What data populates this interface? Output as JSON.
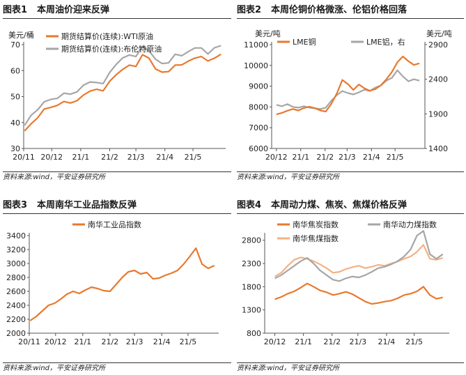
{
  "panels": [
    {
      "label": "图表1",
      "title": "本周油价迎来反弹",
      "source": "资料来源:wind，平安证券研究所"
    },
    {
      "label": "图表2",
      "title": "本周伦铜价格微涨、伦铝价格回落",
      "source": "资料来源:wind，平安证券研究所"
    },
    {
      "label": "图表3",
      "title": "本周南华工业品指数反弹",
      "source": "资料来源:wind，平安证券研究所"
    },
    {
      "label": "图表4",
      "title": "本周动力煤、焦炭、焦煤价格反弹",
      "source": "资料来源:wind，平安证券研究所"
    }
  ],
  "chart_data": [
    {
      "type": "line",
      "title": "本周油价迎来反弹",
      "ylabel": "美元/桶",
      "ylim": [
        30,
        70
      ],
      "yticks": [
        30,
        40,
        50,
        60,
        70
      ],
      "x_tick_labels": [
        "20/11",
        "20/12",
        "21/1",
        "21/2",
        "21/3",
        "21/4",
        "21/5"
      ],
      "legend_position": "top-left",
      "series": [
        {
          "name": "期货结算价(连续):WTI原油",
          "color": "#E8792E",
          "x": [
            "2020-11-02",
            "2020-11-09",
            "2020-11-16",
            "2020-11-23",
            "2020-11-30",
            "2020-12-07",
            "2020-12-14",
            "2020-12-21",
            "2020-12-28",
            "2021-01-04",
            "2021-01-11",
            "2021-01-18",
            "2021-01-25",
            "2021-02-01",
            "2021-02-08",
            "2021-02-15",
            "2021-02-22",
            "2021-03-01",
            "2021-03-08",
            "2021-03-15",
            "2021-03-22",
            "2021-03-29",
            "2021-04-05",
            "2021-04-12",
            "2021-04-19",
            "2021-04-26",
            "2021-05-03",
            "2021-05-10",
            "2021-05-17",
            "2021-05-24",
            "2021-05-31"
          ],
          "y": [
            36.8,
            39.5,
            41.8,
            45.2,
            45.8,
            46.6,
            48.1,
            47.5,
            48.4,
            50.6,
            52.1,
            52.8,
            52.2,
            55.9,
            58.4,
            60.5,
            62.1,
            61.6,
            66.1,
            64.8,
            60.6,
            59.4,
            59.6,
            62.1,
            62.2,
            63.6,
            64.8,
            65.4,
            63.7,
            64.8,
            66.3
          ]
        },
        {
          "name": "期货结算价(连续):布伦特原油",
          "color": "#A6A6A6",
          "x": [
            "2020-11-02",
            "2020-11-09",
            "2020-11-16",
            "2020-11-23",
            "2020-11-30",
            "2020-12-07",
            "2020-12-14",
            "2020-12-21",
            "2020-12-28",
            "2021-01-04",
            "2021-01-11",
            "2021-01-18",
            "2021-01-25",
            "2021-02-01",
            "2021-02-08",
            "2021-02-15",
            "2021-02-22",
            "2021-03-01",
            "2021-03-08",
            "2021-03-15",
            "2021-03-22",
            "2021-03-29",
            "2021-04-05",
            "2021-04-12",
            "2021-04-19",
            "2021-04-26",
            "2021-05-03",
            "2021-05-10",
            "2021-05-17",
            "2021-05-24",
            "2021-05-31"
          ],
          "y": [
            38.9,
            42.8,
            44.9,
            48.0,
            48.9,
            49.3,
            51.3,
            50.9,
            51.8,
            54.4,
            55.6,
            55.4,
            55.0,
            59.3,
            62.4,
            64.9,
            66.0,
            65.4,
            69.3,
            67.6,
            64.4,
            62.7,
            63.0,
            66.3,
            65.7,
            67.3,
            68.7,
            68.7,
            66.4,
            68.8,
            69.6
          ]
        }
      ]
    },
    {
      "type": "line",
      "title": "本周伦铜价格微涨、伦铝价格回落",
      "ylabel": "美元/吨",
      "y2label": "美元/吨",
      "ylim": [
        6000,
        11000
      ],
      "yticks": [
        6000,
        7000,
        8000,
        9000,
        10000,
        11000
      ],
      "y2lim": [
        1400,
        2900
      ],
      "y2ticks": [
        1400,
        1900,
        2400,
        2900
      ],
      "x_tick_labels": [
        "20/12",
        "21/1",
        "21/2",
        "21/3",
        "21/4",
        "21/5"
      ],
      "legend_position": "top",
      "series": [
        {
          "name": "LME铜",
          "axis": "left",
          "color": "#E8792E",
          "x": [
            "2020-12-01",
            "2020-12-08",
            "2020-12-15",
            "2020-12-22",
            "2020-12-29",
            "2021-01-05",
            "2021-01-12",
            "2021-01-19",
            "2021-01-26",
            "2021-02-02",
            "2021-02-09",
            "2021-02-16",
            "2021-02-23",
            "2021-03-02",
            "2021-03-09",
            "2021-03-16",
            "2021-03-23",
            "2021-03-30",
            "2021-04-06",
            "2021-04-13",
            "2021-04-20",
            "2021-04-27",
            "2021-05-04",
            "2021-05-11",
            "2021-05-18",
            "2021-05-25",
            "2021-06-01"
          ],
          "y": [
            7640,
            7710,
            7820,
            7900,
            7830,
            7950,
            8010,
            7940,
            7830,
            7780,
            8150,
            8650,
            9300,
            9100,
            8820,
            9080,
            8900,
            8780,
            8860,
            9040,
            9330,
            9680,
            10150,
            10430,
            10200,
            10020,
            10100
          ]
        },
        {
          "name": "LME铝，右",
          "axis": "right",
          "color": "#A6A6A6",
          "x": [
            "2020-12-01",
            "2020-12-08",
            "2020-12-15",
            "2020-12-22",
            "2020-12-29",
            "2021-01-05",
            "2021-01-12",
            "2021-01-19",
            "2021-01-26",
            "2021-02-02",
            "2021-02-09",
            "2021-02-16",
            "2021-02-23",
            "2021-03-02",
            "2021-03-09",
            "2021-03-16",
            "2021-03-23",
            "2021-03-30",
            "2021-04-06",
            "2021-04-13",
            "2021-04-20",
            "2021-04-27",
            "2021-05-04",
            "2021-05-11",
            "2021-05-18",
            "2021-05-25",
            "2021-06-01"
          ],
          "y": [
            2030,
            2010,
            2040,
            2000,
            1990,
            2010,
            1990,
            1980,
            1970,
            1990,
            2090,
            2170,
            2230,
            2200,
            2180,
            2210,
            2250,
            2230,
            2280,
            2310,
            2380,
            2420,
            2530,
            2440,
            2370,
            2400,
            2380
          ]
        }
      ]
    },
    {
      "type": "line",
      "title": "本周南华工业品指数反弹",
      "ylim": [
        2000,
        3400
      ],
      "yticks": [
        2000,
        2200,
        2400,
        2600,
        2800,
        3000,
        3200,
        3400
      ],
      "x_tick_labels": [
        "20/11",
        "20/12",
        "21/1",
        "21/2",
        "21/3",
        "21/4",
        "21/5"
      ],
      "legend_position": "top-left",
      "series": [
        {
          "name": "南华工业品指数",
          "color": "#E8792E",
          "x": [
            "2020-11-02",
            "2020-11-09",
            "2020-11-16",
            "2020-11-23",
            "2020-11-30",
            "2020-12-07",
            "2020-12-14",
            "2020-12-21",
            "2020-12-28",
            "2021-01-04",
            "2021-01-11",
            "2021-01-18",
            "2021-01-25",
            "2021-02-01",
            "2021-02-08",
            "2021-02-15",
            "2021-02-22",
            "2021-03-01",
            "2021-03-08",
            "2021-03-15",
            "2021-03-22",
            "2021-03-29",
            "2021-04-05",
            "2021-04-12",
            "2021-04-19",
            "2021-04-26",
            "2021-05-03",
            "2021-05-10",
            "2021-05-17",
            "2021-05-24",
            "2021-05-31"
          ],
          "y": [
            2180,
            2240,
            2320,
            2400,
            2430,
            2490,
            2560,
            2600,
            2570,
            2620,
            2660,
            2640,
            2610,
            2600,
            2700,
            2800,
            2880,
            2900,
            2850,
            2870,
            2780,
            2790,
            2830,
            2860,
            2900,
            2990,
            3100,
            3220,
            2990,
            2930,
            2970
          ]
        }
      ]
    },
    {
      "type": "line",
      "title": "本周动力煤、焦炭、焦煤价格反弹",
      "ylim": [
        800,
        2900
      ],
      "yticks": [
        800,
        1300,
        1800,
        2300,
        2800
      ],
      "x_tick_labels": [
        "20/12",
        "21/1",
        "21/2",
        "21/3",
        "21/4",
        "21/5"
      ],
      "legend_position": "top",
      "series": [
        {
          "name": "南华焦炭指数",
          "color": "#E8792E",
          "x": [
            "2020-12-01",
            "2020-12-08",
            "2020-12-15",
            "2020-12-22",
            "2020-12-29",
            "2021-01-05",
            "2021-01-12",
            "2021-01-19",
            "2021-01-26",
            "2021-02-02",
            "2021-02-09",
            "2021-02-16",
            "2021-02-23",
            "2021-03-02",
            "2021-03-09",
            "2021-03-16",
            "2021-03-23",
            "2021-03-30",
            "2021-04-06",
            "2021-04-13",
            "2021-04-20",
            "2021-04-27",
            "2021-05-04",
            "2021-05-11",
            "2021-05-18",
            "2021-05-25",
            "2021-06-01"
          ],
          "y": [
            1530,
            1580,
            1650,
            1700,
            1780,
            1870,
            1800,
            1720,
            1680,
            1620,
            1650,
            1690,
            1640,
            1560,
            1480,
            1430,
            1450,
            1480,
            1500,
            1550,
            1620,
            1650,
            1700,
            1800,
            1620,
            1540,
            1570
          ]
        },
        {
          "name": "南华动力煤指数",
          "color": "#A6A6A6",
          "x": [
            "2020-12-01",
            "2020-12-08",
            "2020-12-15",
            "2020-12-22",
            "2020-12-29",
            "2021-01-05",
            "2021-01-12",
            "2021-01-19",
            "2021-01-26",
            "2021-02-02",
            "2021-02-09",
            "2021-02-16",
            "2021-02-23",
            "2021-03-02",
            "2021-03-09",
            "2021-03-16",
            "2021-03-23",
            "2021-03-30",
            "2021-04-06",
            "2021-04-13",
            "2021-04-20",
            "2021-04-27",
            "2021-05-04",
            "2021-05-11",
            "2021-05-18",
            "2021-05-25",
            "2021-06-01"
          ],
          "y": [
            1980,
            2050,
            2150,
            2250,
            2350,
            2420,
            2300,
            2150,
            2050,
            1950,
            1920,
            1980,
            2020,
            2000,
            2050,
            2120,
            2200,
            2230,
            2280,
            2350,
            2450,
            2600,
            2900,
            3000,
            2500,
            2400,
            2500
          ]
        },
        {
          "name": "南华焦煤指数",
          "color": "#F4B183",
          "x": [
            "2020-12-01",
            "2020-12-08",
            "2020-12-15",
            "2020-12-22",
            "2020-12-29",
            "2021-01-05",
            "2021-01-12",
            "2021-01-19",
            "2021-01-26",
            "2021-02-02",
            "2021-02-09",
            "2021-02-16",
            "2021-02-23",
            "2021-03-02",
            "2021-03-09",
            "2021-03-16",
            "2021-03-23",
            "2021-03-30",
            "2021-04-06",
            "2021-04-13",
            "2021-04-20",
            "2021-04-27",
            "2021-05-04",
            "2021-05-11",
            "2021-05-18",
            "2021-05-25",
            "2021-06-01"
          ],
          "y": [
            2020,
            2100,
            2250,
            2380,
            2430,
            2400,
            2350,
            2280,
            2200,
            2100,
            2120,
            2180,
            2220,
            2250,
            2200,
            2230,
            2270,
            2250,
            2300,
            2340,
            2400,
            2450,
            2550,
            2700,
            2400,
            2380,
            2420
          ]
        }
      ]
    }
  ]
}
